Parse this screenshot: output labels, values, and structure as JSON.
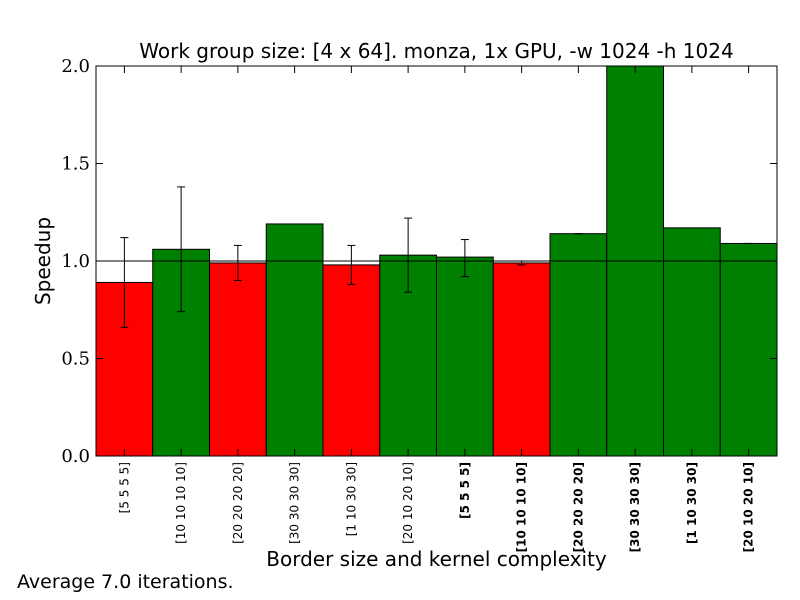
{
  "chart_data": {
    "type": "bar",
    "title": "Work group size: [4 x 64]. monza, 1x GPU, -w 1024 -h 1024",
    "xlabel": "Border size and kernel complexity",
    "ylabel": "Speedup",
    "ylim": [
      0.0,
      2.0
    ],
    "yticks": [
      "0.0",
      "0.5",
      "1.0",
      "1.5",
      "2.0"
    ],
    "ytick_values": [
      0.0,
      0.5,
      1.0,
      1.5,
      2.0
    ],
    "reference_line": 1.0,
    "grid": false,
    "categories": [
      "[5 5 5 5]",
      "[10 10 10 10]",
      "[20 20 20 20]",
      "[30 30 30 30]",
      "[1 10 30 30]",
      "[20 10 20 10]",
      "[5 5 5 5]",
      "[10 10 10 10]",
      "[20 20 20 20]",
      "[30 30 30 30]",
      "[1 10 30 30]",
      "[20 10 20 10]"
    ],
    "category_bold": [
      false,
      false,
      false,
      false,
      false,
      false,
      true,
      true,
      true,
      true,
      true,
      true
    ],
    "values": [
      0.89,
      1.06,
      0.99,
      1.19,
      0.98,
      1.03,
      1.02,
      0.99,
      1.14,
      2.0,
      1.17,
      1.09
    ],
    "error_low": [
      0.66,
      0.74,
      0.9,
      null,
      0.88,
      0.84,
      0.92,
      0.98,
      1.14,
      null,
      null,
      1.09
    ],
    "error_high": [
      1.12,
      1.38,
      1.08,
      null,
      1.08,
      1.22,
      1.11,
      1.0,
      1.14,
      null,
      null,
      1.09
    ],
    "colors": {
      "below": "#ff0000",
      "above": "#008000"
    }
  },
  "footnote": "Average 7.0 iterations."
}
